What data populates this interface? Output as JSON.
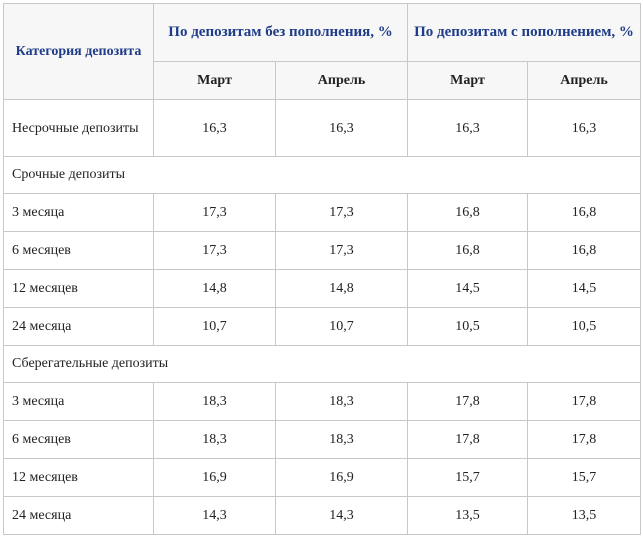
{
  "header": {
    "category": "Категория депозита",
    "group1": "По депозитам без пополнения, %",
    "group2": "По депозитам с пополнением, %",
    "months": [
      "Март",
      "Апрель",
      "Март",
      "Апрель"
    ]
  },
  "nonterm": {
    "label": "Несрочные депозиты",
    "values": [
      "16,3",
      "16,3",
      "16,3",
      "16,3"
    ]
  },
  "term": {
    "title": "Срочные депозиты",
    "rows": [
      {
        "label": "3 месяца",
        "values": [
          "17,3",
          "17,3",
          "16,8",
          "16,8"
        ]
      },
      {
        "label": "6 месяцев",
        "values": [
          "17,3",
          "17,3",
          "16,8",
          "16,8"
        ]
      },
      {
        "label": "12 месяцев",
        "values": [
          "14,8",
          "14,8",
          "14,5",
          "14,5"
        ]
      },
      {
        "label": "24 месяца",
        "values": [
          "10,7",
          "10,7",
          "10,5",
          "10,5"
        ]
      }
    ]
  },
  "savings": {
    "title": "Сберегательные депозиты",
    "rows": [
      {
        "label": "3 месяца",
        "values": [
          "18,3",
          "18,3",
          "17,8",
          "17,8"
        ]
      },
      {
        "label": "6 месяцев",
        "values": [
          "18,3",
          "18,3",
          "17,8",
          "17,8"
        ]
      },
      {
        "label": "12 месяцев",
        "values": [
          "16,9",
          "16,9",
          "15,7",
          "15,7"
        ]
      },
      {
        "label": "24 месяца",
        "values": [
          "14,3",
          "14,3",
          "13,5",
          "13,5"
        ]
      }
    ]
  }
}
